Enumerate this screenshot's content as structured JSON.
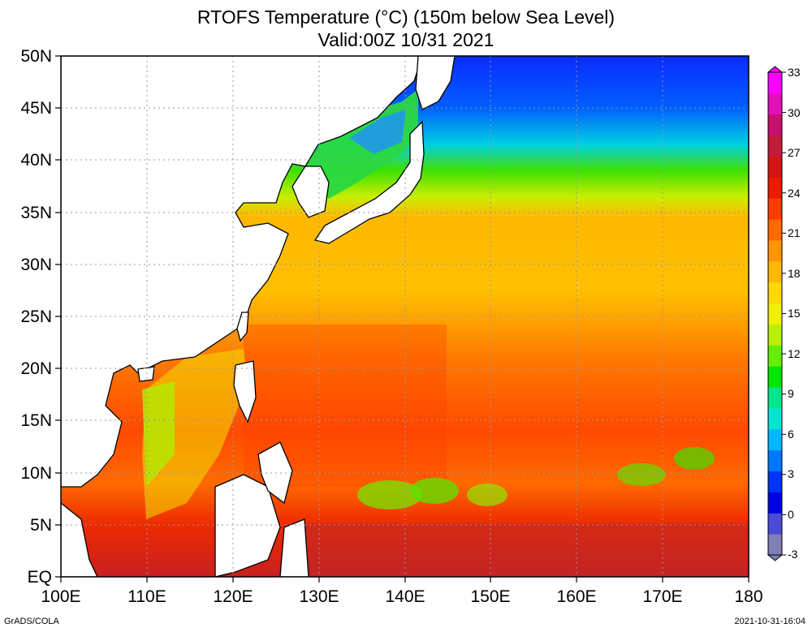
{
  "title_line1": "RTOFS Temperature (°C) (150m below Sea Level)",
  "title_line2": "Valid:00Z 10/31 2021",
  "footer_left": "GrADS/COLA",
  "footer_right": "2021-10-31-16:04",
  "map": {
    "lon_ticks": [
      "100E",
      "110E",
      "120E",
      "130E",
      "140E",
      "150E",
      "160E",
      "170E",
      "180"
    ],
    "lat_ticks": [
      "EQ",
      "5N",
      "10N",
      "15N",
      "20N",
      "25N",
      "30N",
      "35N",
      "40N",
      "45N",
      "50N"
    ],
    "lon_range": [
      100,
      180
    ],
    "lat_range": [
      0,
      50
    ],
    "grid": true,
    "land_color": "#ffffff",
    "coast_color": "#000000"
  },
  "colorbar": {
    "labels": [
      "33",
      "30",
      "27",
      "24",
      "21",
      "18",
      "15",
      "12",
      "9",
      "6",
      "3",
      "0",
      "-3"
    ],
    "min": -3,
    "max": 33,
    "colors": [
      "#7f7fb5",
      "#4b4bd8",
      "#0000e6",
      "#0033ff",
      "#0077ff",
      "#00b7ff",
      "#00e6d0",
      "#00e68a",
      "#00e600",
      "#66ee00",
      "#b8f000",
      "#f0f000",
      "#ffd800",
      "#ffb800",
      "#ff9400",
      "#ff6a00",
      "#ff3c00",
      "#ee1a00",
      "#d41414",
      "#c01c3a",
      "#c8106e",
      "#e010b8",
      "#ff00ff"
    ]
  }
}
